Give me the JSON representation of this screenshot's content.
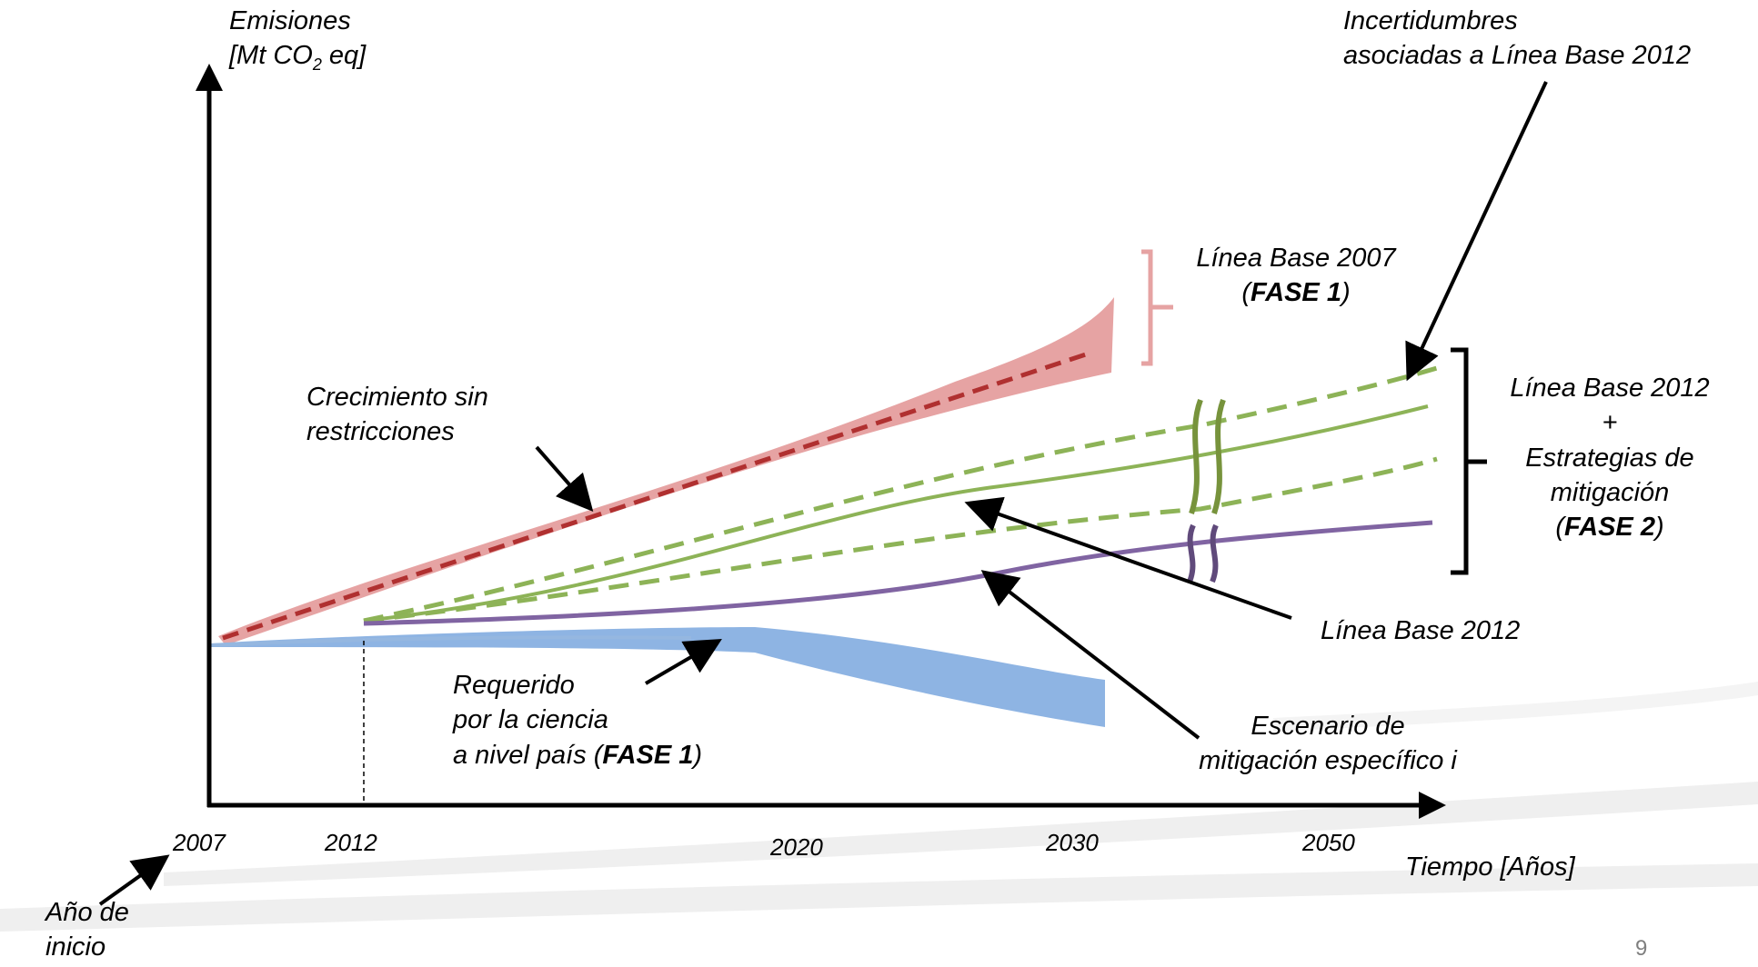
{
  "axes": {
    "y_label_line1": "Emisiones",
    "y_label_line2_prefix": "[Mt CO",
    "y_label_sub": "2",
    "y_label_line2_suffix": " eq]",
    "x_label": "Tiempo [Años]",
    "x_ticks": [
      "2007",
      "2012",
      "2020",
      "2030",
      "2050"
    ]
  },
  "labels": {
    "start_year_1": "Año de",
    "start_year_2": "inicio",
    "growth_1": "Crecimiento sin",
    "growth_2": "restricciones",
    "science_1": "Requerido",
    "science_2": "por la ciencia",
    "science_3_prefix": "a nivel país (",
    "science_3_bold": "FASE 1",
    "science_3_suffix": ")",
    "lb2007_1": "Línea Base 2007",
    "lb2007_2_prefix": "(",
    "lb2007_2_bold": "FASE 1",
    "lb2007_2_suffix": ")",
    "uncert_1": "Incertidumbres",
    "uncert_2": "asociadas a Línea Base 2012",
    "phase2_1": "Línea Base 2012",
    "phase2_2": "+",
    "phase2_3": "Estrategias de",
    "phase2_4": "mitigación",
    "phase2_5_prefix": "(",
    "phase2_5_bold": "FASE 2",
    "phase2_5_suffix": ")",
    "lb2012": "Línea Base 2012",
    "scenario_1": "Escenario de",
    "scenario_2": "mitigación específico i"
  },
  "page_number": "9",
  "colors": {
    "red_band": "#e6a3a3",
    "red_dash": "#b03030",
    "green": "#8db357",
    "green_dash": "#8db357",
    "purple": "#8064a2",
    "blue_band": "#8eb4e3",
    "blue_line": "#95b7e0",
    "axis": "#000000"
  }
}
